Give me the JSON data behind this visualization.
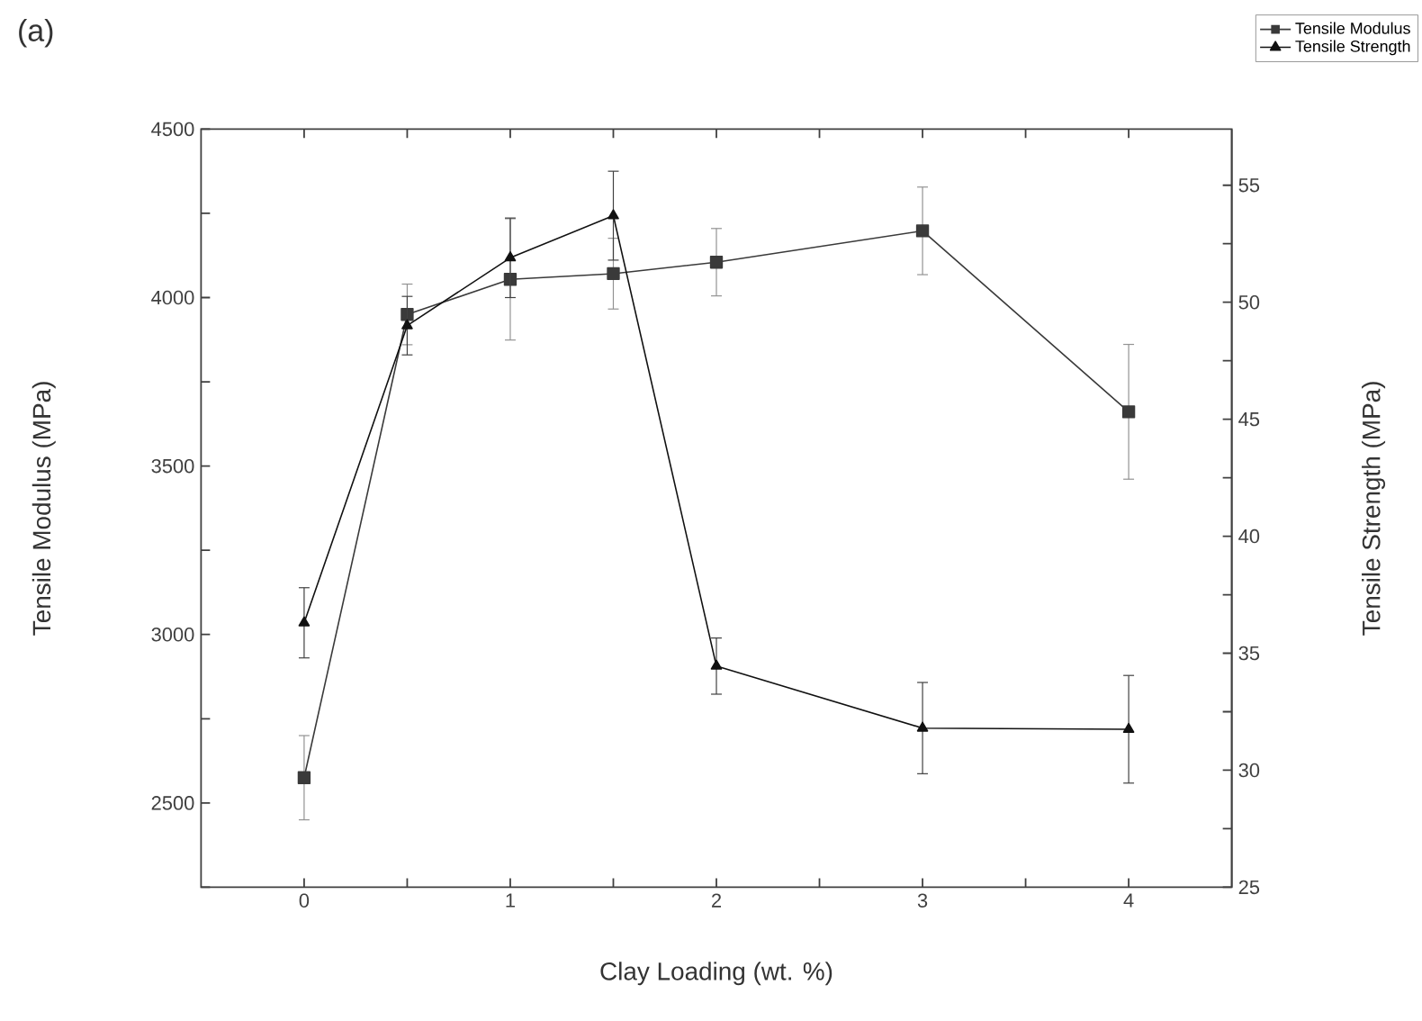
{
  "chart_data": {
    "type": "line",
    "title": "(a)",
    "xlabel": "Clay Loading (wt. %)",
    "ylabel": "Tensile Modulus (MPa)",
    "y2label": "Tensile Strength (MPa)",
    "x": [
      0,
      0.5,
      1,
      1.5,
      2,
      3,
      4
    ],
    "series": [
      {
        "name": "Tensile Modulus",
        "color": "#3a3a3a",
        "marker": "square",
        "values": [
          2575,
          3950,
          4054,
          4071,
          4105,
          4198,
          3661
        ],
        "errors": [
          125,
          90,
          180,
          105,
          100,
          130,
          200
        ]
      },
      {
        "name": "Tensile Strength",
        "color": "#111111",
        "marker": "triangle",
        "axis": "y2",
        "values": [
          36.3,
          49.0,
          51.9,
          53.7,
          34.45,
          31.8,
          31.75
        ],
        "errors": [
          1.5,
          1.25,
          1.7,
          1.9,
          1.2,
          1.95,
          2.3
        ]
      }
    ],
    "xlim": [
      -0.5,
      4.5
    ],
    "xticks": [
      0,
      {
        "value": 0.5,
        "label": null
      },
      1,
      {
        "value": 1.5,
        "label": null
      },
      2,
      {
        "value": 2.5,
        "label": null
      },
      3,
      {
        "value": 3.5,
        "label": null
      },
      4
    ],
    "ylim": [
      2250,
      4500
    ],
    "yticks": [
      {
        "value": 2250,
        "label": null
      },
      2500,
      {
        "value": 2750,
        "label": null
      },
      3000,
      {
        "value": 3250,
        "label": null
      },
      3500,
      {
        "value": 3750,
        "label": null
      },
      4000,
      {
        "value": 4250,
        "label": null
      },
      4500
    ],
    "y2lim": [
      25,
      57.4
    ],
    "y2ticks": [
      25,
      {
        "value": 27.5,
        "label": null
      },
      30,
      {
        "value": 32.5,
        "label": null
      },
      35,
      {
        "value": 37.5,
        "label": null
      },
      40,
      {
        "value": 42.5,
        "label": null
      },
      45,
      {
        "value": 47.5,
        "label": null
      },
      50,
      {
        "value": 52.5,
        "label": null
      },
      55
    ],
    "grid": false,
    "legend": "top right",
    "line_style": "solid"
  }
}
